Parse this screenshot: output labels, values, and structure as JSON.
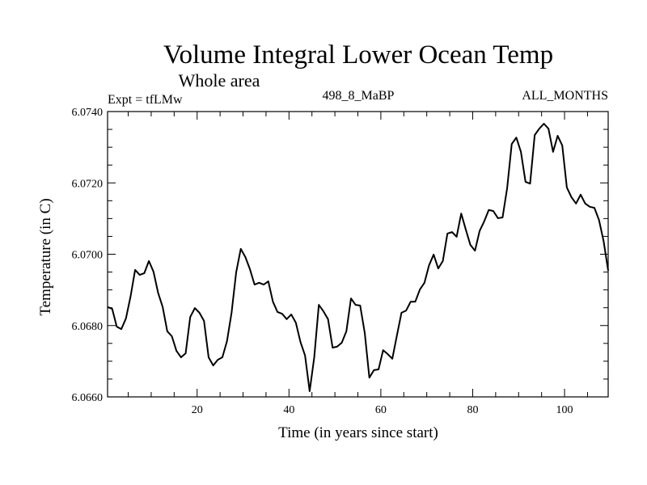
{
  "chart_data": {
    "type": "line",
    "title": "Volume Integral Lower Ocean Temp",
    "subtitle": "Whole area",
    "annotations": {
      "left": "Expt = tfLMw",
      "center": "498_8_MaBP",
      "right": "ALL_MONTHS"
    },
    "xlabel": "Time (in years since start)",
    "ylabel": "Temperature (in C)",
    "xlim": [
      0.5,
      109.5
    ],
    "ylim": [
      6.066,
      6.074
    ],
    "x_ticks": [
      20,
      40,
      60,
      80,
      100
    ],
    "x_tick_labels": [
      "20",
      "40",
      "60",
      "80",
      "100"
    ],
    "x_minor_step": 5,
    "y_ticks": [
      6.066,
      6.068,
      6.07,
      6.072,
      6.074
    ],
    "y_tick_labels": [
      "6.0660",
      "6.0680",
      "6.0700",
      "6.0720",
      "6.0740"
    ],
    "y_minor_step": 0.0005,
    "grid": false,
    "legend": "none",
    "series": [
      {
        "name": "Volume Integral Lower Ocean Temp",
        "color": "#000000",
        "x_start": 0.5,
        "x_step": 1,
        "values": [
          6.06852,
          6.06847,
          6.06797,
          6.0679,
          6.0682,
          6.06881,
          6.06956,
          6.06942,
          6.06947,
          6.06981,
          6.06951,
          6.06892,
          6.06852,
          6.06784,
          6.0677,
          6.06729,
          6.06711,
          6.06722,
          6.06824,
          6.06849,
          6.06836,
          6.06813,
          6.06711,
          6.06688,
          6.06704,
          6.06711,
          6.06756,
          6.06836,
          6.06949,
          6.07015,
          6.06992,
          6.06958,
          6.06915,
          6.0692,
          6.06915,
          6.06924,
          6.06867,
          6.06838,
          6.06833,
          6.06818,
          6.06831,
          6.06808,
          6.06754,
          6.06716,
          6.06616,
          6.06711,
          6.06858,
          6.0684,
          6.06818,
          6.06738,
          6.06741,
          6.06752,
          6.06784,
          6.06876,
          6.06858,
          6.06856,
          6.06779,
          6.06654,
          6.06675,
          6.06677,
          6.06731,
          6.0672,
          6.06707,
          6.06772,
          6.06836,
          6.06842,
          6.06867,
          6.06867,
          6.06901,
          6.0692,
          6.06969,
          6.06999,
          6.0696,
          6.06981,
          6.07058,
          6.07062,
          6.07049,
          6.07114,
          6.07069,
          6.07026,
          6.0701,
          6.07065,
          6.07092,
          6.07124,
          6.07121,
          6.07101,
          6.07103,
          6.07185,
          6.07309,
          6.07327,
          6.07287,
          6.07203,
          6.07198,
          6.07334,
          6.07352,
          6.07366,
          6.07352,
          6.07287,
          6.07332,
          6.07305,
          6.07187,
          6.0716,
          6.07142,
          6.07167,
          6.07142,
          6.07133,
          6.0713,
          6.07096,
          6.07037,
          6.06954
        ]
      }
    ]
  }
}
